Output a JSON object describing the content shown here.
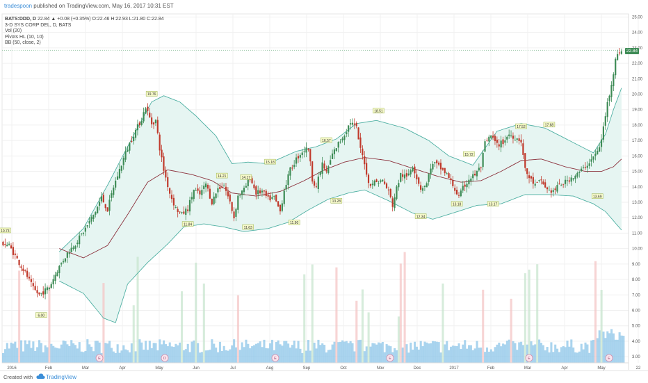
{
  "header": {
    "publisher": "tradespoon",
    "published_text": "published on TradingView.com, May 16, 2017 10:31 EST"
  },
  "legend": {
    "symbol": "BATS:DDD, D",
    "ohlc_text": "22.84 ▲ +0.08 (+0.35%) O:22.46 H:22.93 L:21.80 C:22.84",
    "company": "3-D SYS CORP DEL, D, BATS",
    "indicators": [
      "Vol (20)",
      "Pivots HL (10, 10)",
      "BB (50, close, 2)"
    ]
  },
  "last_price_label": "22.84",
  "footer": {
    "created_with": "Created with",
    "brand": "TradingView"
  },
  "colors": {
    "up": "#3d8b55",
    "down": "#c0392b",
    "band": "#4fb0a3",
    "band_fill": "#e6f5f2",
    "basis": "#8b2f3a",
    "volume": "#8ec5e8",
    "event_circle": "#d48fae"
  },
  "chart_data": {
    "type": "candlestick",
    "x_axis_labels": [
      "2016",
      "Feb",
      "Mar",
      "Apr",
      "May",
      "Jun",
      "Jul",
      "Aug",
      "Sep",
      "Oct",
      "Nov",
      "Dec",
      "2017",
      "Feb",
      "Mar",
      "Apr",
      "May",
      "22"
    ],
    "y_axis": {
      "ylim": [
        2.6,
        25.2
      ],
      "ticks": [
        "25.00",
        "24.00",
        "23.00",
        "22.00",
        "21.00",
        "20.00",
        "19.00",
        "18.00",
        "17.00",
        "16.00",
        "15.00",
        "14.00",
        "13.00",
        "12.00",
        "11.00",
        "10.00",
        "9.00",
        "8.00",
        "7.00",
        "6.00",
        "5.00",
        "4.00",
        "3.00"
      ]
    },
    "price_path": [
      [
        0,
        10.4
      ],
      [
        4,
        10.2
      ],
      [
        8,
        9.3
      ],
      [
        13,
        8.2
      ],
      [
        16,
        7.4
      ],
      [
        19,
        7.0
      ],
      [
        24,
        7.5
      ],
      [
        28,
        8.6
      ],
      [
        33,
        9.7
      ],
      [
        38,
        10.5
      ],
      [
        43,
        11.5
      ],
      [
        47,
        12.4
      ],
      [
        50,
        13.3
      ],
      [
        53,
        12.5
      ],
      [
        56,
        14.0
      ],
      [
        59,
        15.1
      ],
      [
        62,
        16.2
      ],
      [
        66,
        17.4
      ],
      [
        70,
        18.4
      ],
      [
        72,
        19.2
      ],
      [
        75,
        18.1
      ],
      [
        77,
        18.3
      ],
      [
        79,
        16.5
      ],
      [
        81,
        15.1
      ],
      [
        84,
        13.6
      ],
      [
        87,
        12.6
      ],
      [
        90,
        12.2
      ],
      [
        93,
        12.6
      ],
      [
        96,
        13.8
      ],
      [
        99,
        13.5
      ],
      [
        102,
        14.2
      ],
      [
        105,
        13.0
      ],
      [
        108,
        13.9
      ],
      [
        111,
        14.1
      ],
      [
        114,
        13.0
      ],
      [
        116,
        12.0
      ],
      [
        118,
        13.4
      ],
      [
        121,
        13.8
      ],
      [
        124,
        14.6
      ],
      [
        127,
        13.6
      ],
      [
        130,
        13.7
      ],
      [
        133,
        13.2
      ],
      [
        136,
        13.3
      ],
      [
        139,
        12.4
      ],
      [
        141,
        13.8
      ],
      [
        144,
        15.1
      ],
      [
        147,
        15.8
      ],
      [
        150,
        16.3
      ],
      [
        153,
        16.5
      ],
      [
        155,
        14.5
      ],
      [
        157,
        14.0
      ],
      [
        160,
        15.5
      ],
      [
        162,
        14.9
      ],
      [
        165,
        16.1
      ],
      [
        168,
        16.8
      ],
      [
        171,
        17.4
      ],
      [
        174,
        18.2
      ],
      [
        177,
        17.8
      ],
      [
        179,
        16.4
      ],
      [
        181,
        15.6
      ],
      [
        183,
        14.2
      ],
      [
        186,
        14.3
      ],
      [
        190,
        14.4
      ],
      [
        193,
        13.7
      ],
      [
        195,
        12.8
      ],
      [
        197,
        13.9
      ],
      [
        199,
        14.8
      ],
      [
        202,
        14.6
      ],
      [
        205,
        15.4
      ],
      [
        207,
        14.6
      ],
      [
        209,
        13.9
      ],
      [
        212,
        14.2
      ],
      [
        214,
        15.3
      ],
      [
        216,
        15.5
      ],
      [
        219,
        15.2
      ],
      [
        222,
        14.8
      ],
      [
        225,
        14.1
      ],
      [
        228,
        13.3
      ],
      [
        230,
        13.9
      ],
      [
        233,
        14.5
      ],
      [
        236,
        14.8
      ],
      [
        239,
        15.3
      ],
      [
        241,
        16.8
      ],
      [
        244,
        17.3
      ],
      [
        247,
        16.7
      ],
      [
        250,
        16.9
      ],
      [
        253,
        17.4
      ],
      [
        256,
        17.2
      ],
      [
        259,
        17.0
      ],
      [
        261,
        15.1
      ],
      [
        263,
        14.6
      ],
      [
        266,
        14.1
      ],
      [
        269,
        14.4
      ],
      [
        272,
        13.8
      ],
      [
        275,
        13.7
      ],
      [
        278,
        14.1
      ],
      [
        281,
        14.3
      ],
      [
        284,
        14.6
      ],
      [
        287,
        14.8
      ],
      [
        290,
        15.2
      ],
      [
        293,
        15.6
      ],
      [
        296,
        16.1
      ],
      [
        298,
        16.5
      ],
      [
        300,
        17.8
      ],
      [
        302,
        19.4
      ],
      [
        304,
        20.7
      ],
      [
        306,
        22.2
      ],
      [
        308,
        22.8
      ]
    ],
    "total_bars": 312,
    "bollinger": {
      "upper": [
        [
          28,
          9.8
        ],
        [
          40,
          11.3
        ],
        [
          52,
          14.1
        ],
        [
          64,
          17.1
        ],
        [
          74,
          19.5
        ],
        [
          80,
          19.9
        ],
        [
          88,
          19.5
        ],
        [
          96,
          18.6
        ],
        [
          106,
          17.3
        ],
        [
          114,
          15.5
        ],
        [
          122,
          15.6
        ],
        [
          132,
          15.5
        ],
        [
          146,
          16.3
        ],
        [
          156,
          16.6
        ],
        [
          166,
          17.1
        ],
        [
          176,
          18.1
        ],
        [
          186,
          18.3
        ],
        [
          200,
          17.8
        ],
        [
          212,
          17.0
        ],
        [
          222,
          16.0
        ],
        [
          234,
          15.4
        ],
        [
          246,
          17.6
        ],
        [
          258,
          18.1
        ],
        [
          270,
          17.8
        ],
        [
          282,
          17.0
        ],
        [
          294,
          16.2
        ],
        [
          300,
          17.4
        ],
        [
          304,
          19.0
        ],
        [
          308,
          20.4
        ]
      ],
      "basis": [
        [
          28,
          10.0
        ],
        [
          40,
          9.4
        ],
        [
          52,
          10.2
        ],
        [
          62,
          12.2
        ],
        [
          72,
          14.3
        ],
        [
          82,
          15.1
        ],
        [
          94,
          14.8
        ],
        [
          104,
          14.4
        ],
        [
          114,
          13.6
        ],
        [
          126,
          13.4
        ],
        [
          138,
          13.7
        ],
        [
          150,
          14.4
        ],
        [
          160,
          15.1
        ],
        [
          170,
          15.6
        ],
        [
          180,
          15.9
        ],
        [
          192,
          15.7
        ],
        [
          204,
          15.2
        ],
        [
          216,
          14.7
        ],
        [
          228,
          14.3
        ],
        [
          238,
          14.4
        ],
        [
          248,
          15.0
        ],
        [
          258,
          15.7
        ],
        [
          268,
          15.8
        ],
        [
          280,
          15.3
        ],
        [
          290,
          15.0
        ],
        [
          298,
          15.0
        ],
        [
          304,
          15.3
        ],
        [
          308,
          15.8
        ]
      ],
      "lower": [
        [
          28,
          7.9
        ],
        [
          40,
          7.1
        ],
        [
          50,
          5.5
        ],
        [
          56,
          5.2
        ],
        [
          62,
          7.7
        ],
        [
          72,
          9.1
        ],
        [
          82,
          10.3
        ],
        [
          90,
          11.4
        ],
        [
          100,
          11.6
        ],
        [
          110,
          11.4
        ],
        [
          120,
          11.1
        ],
        [
          132,
          11.3
        ],
        [
          142,
          11.7
        ],
        [
          152,
          12.5
        ],
        [
          162,
          13.2
        ],
        [
          172,
          13.6
        ],
        [
          180,
          13.8
        ],
        [
          192,
          13.1
        ],
        [
          204,
          12.3
        ],
        [
          214,
          11.9
        ],
        [
          224,
          12.3
        ],
        [
          236,
          12.8
        ],
        [
          248,
          12.9
        ],
        [
          260,
          13.5
        ],
        [
          272,
          13.5
        ],
        [
          284,
          13.4
        ],
        [
          294,
          12.9
        ],
        [
          300,
          12.4
        ],
        [
          304,
          11.8
        ],
        [
          308,
          11.2
        ]
      ]
    },
    "pivot_labels": [
      {
        "text": "10.73",
        "bar": 1,
        "price": 10.75,
        "pos": "high"
      },
      {
        "text": "6.00",
        "bar": 19,
        "price": 5.9,
        "pos": "low"
      },
      {
        "text": "19.76",
        "bar": 74,
        "price": 19.6,
        "pos": "high"
      },
      {
        "text": "11.84",
        "bar": 92,
        "price": 11.8,
        "pos": "low"
      },
      {
        "text": "14.21",
        "bar": 109,
        "price": 14.3,
        "pos": "high"
      },
      {
        "text": "14.17",
        "bar": 121,
        "price": 14.2,
        "pos": "high"
      },
      {
        "text": "11.63",
        "bar": 122,
        "price": 11.6,
        "pos": "low"
      },
      {
        "text": "15.18",
        "bar": 133,
        "price": 15.2,
        "pos": "high"
      },
      {
        "text": "11.90",
        "bar": 145,
        "price": 11.9,
        "pos": "low"
      },
      {
        "text": "16.57",
        "bar": 161,
        "price": 16.6,
        "pos": "high"
      },
      {
        "text": "13.28",
        "bar": 166,
        "price": 13.3,
        "pos": "low"
      },
      {
        "text": "18.51",
        "bar": 187,
        "price": 18.5,
        "pos": "high"
      },
      {
        "text": "12.34",
        "bar": 208,
        "price": 12.3,
        "pos": "low"
      },
      {
        "text": "15.72",
        "bar": 232,
        "price": 15.7,
        "pos": "high"
      },
      {
        "text": "13.18",
        "bar": 226,
        "price": 13.1,
        "pos": "low"
      },
      {
        "text": "13.17",
        "bar": 244,
        "price": 13.1,
        "pos": "low"
      },
      {
        "text": "17.52",
        "bar": 258,
        "price": 17.5,
        "pos": "high"
      },
      {
        "text": "17.68",
        "bar": 272,
        "price": 17.6,
        "pos": "high"
      },
      {
        "text": "13.69",
        "bar": 296,
        "price": 13.6,
        "pos": "low"
      }
    ],
    "event_markers": [
      "E",
      "D",
      "E",
      "E",
      "E",
      "E",
      "E"
    ],
    "volume": {
      "name": "Vol (20)"
    }
  }
}
